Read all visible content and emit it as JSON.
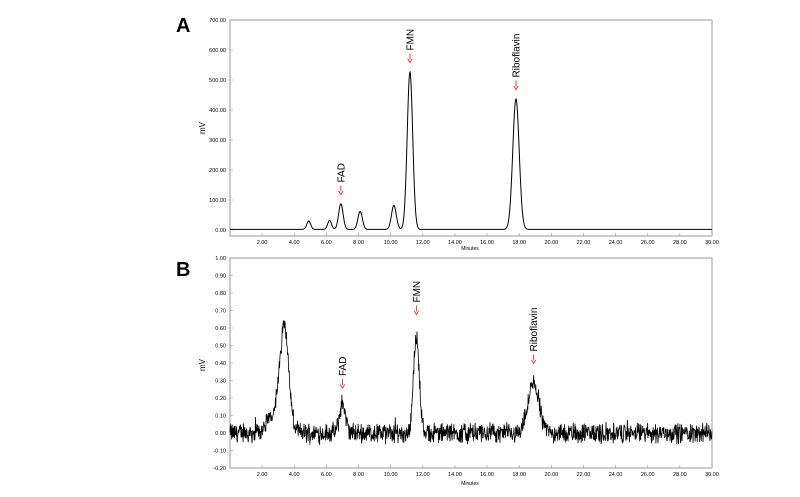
{
  "chart_data": [
    {
      "panel": "A",
      "type": "line",
      "xlabel": "Minutes",
      "ylabel": "mV",
      "xlim": [
        0,
        30
      ],
      "ylim": [
        -20,
        700
      ],
      "xticks": [
        "2.00",
        "4.00",
        "6.00",
        "8.00",
        "10.00",
        "12.00",
        "14.00",
        "16.00",
        "18.00",
        "20.00",
        "22.00",
        "24.00",
        "26.00",
        "28.00",
        "30.00"
      ],
      "yticks": [
        "0.00",
        "100.00",
        "200.00",
        "300.00",
        "400.00",
        "500.00",
        "600.00",
        "700.00"
      ],
      "peaks": [
        {
          "x": 4.9,
          "y": 28,
          "w": 0.12
        },
        {
          "x": 6.2,
          "y": 30,
          "w": 0.12
        },
        {
          "x": 6.9,
          "y": 85,
          "w": 0.14
        },
        {
          "x": 8.1,
          "y": 60,
          "w": 0.14
        },
        {
          "x": 10.2,
          "y": 80,
          "w": 0.15
        },
        {
          "x": 11.2,
          "y": 525,
          "w": 0.17
        },
        {
          "x": 17.8,
          "y": 435,
          "w": 0.2
        }
      ],
      "baseline": 2,
      "annotations": [
        {
          "label": "FAD",
          "x": 6.9,
          "y": 85
        },
        {
          "label": "FMN",
          "x": 11.2,
          "y": 525
        },
        {
          "label": "Riboflavin",
          "x": 17.8,
          "y": 435
        }
      ],
      "grid": false
    },
    {
      "panel": "B",
      "type": "line",
      "xlabel": "Minutes",
      "ylabel": "mV",
      "xlim": [
        0,
        30
      ],
      "ylim": [
        -0.2,
        1.0
      ],
      "xticks": [
        "2.00",
        "4.00",
        "6.00",
        "8.00",
        "10.00",
        "12.00",
        "14.00",
        "16.00",
        "18.00",
        "20.00",
        "22.00",
        "24.00",
        "26.00",
        "28.00",
        "30.00"
      ],
      "yticks": [
        "-0.20",
        "-0.10",
        "0.00",
        "0.10",
        "0.20",
        "0.30",
        "0.40",
        "0.50",
        "0.60",
        "0.70",
        "0.80",
        "0.90",
        "1.00"
      ],
      "peaks": [
        {
          "x": 3.4,
          "y": 0.52,
          "w": 0.25
        },
        {
          "x": 3.0,
          "y": 0.15,
          "w": 0.5
        },
        {
          "x": 7.0,
          "y": 0.17,
          "w": 0.18
        },
        {
          "x": 11.6,
          "y": 0.55,
          "w": 0.18
        },
        {
          "x": 18.9,
          "y": 0.28,
          "w": 0.35
        }
      ],
      "noise": 0.045,
      "baseline": 0.0,
      "annotations": [
        {
          "label": "FAD",
          "x": 7.0,
          "y": 0.2
        },
        {
          "label": "FMN",
          "x": 11.6,
          "y": 0.62
        },
        {
          "label": "Riboflavin",
          "x": 18.9,
          "y": 0.34
        }
      ],
      "grid": false
    }
  ]
}
